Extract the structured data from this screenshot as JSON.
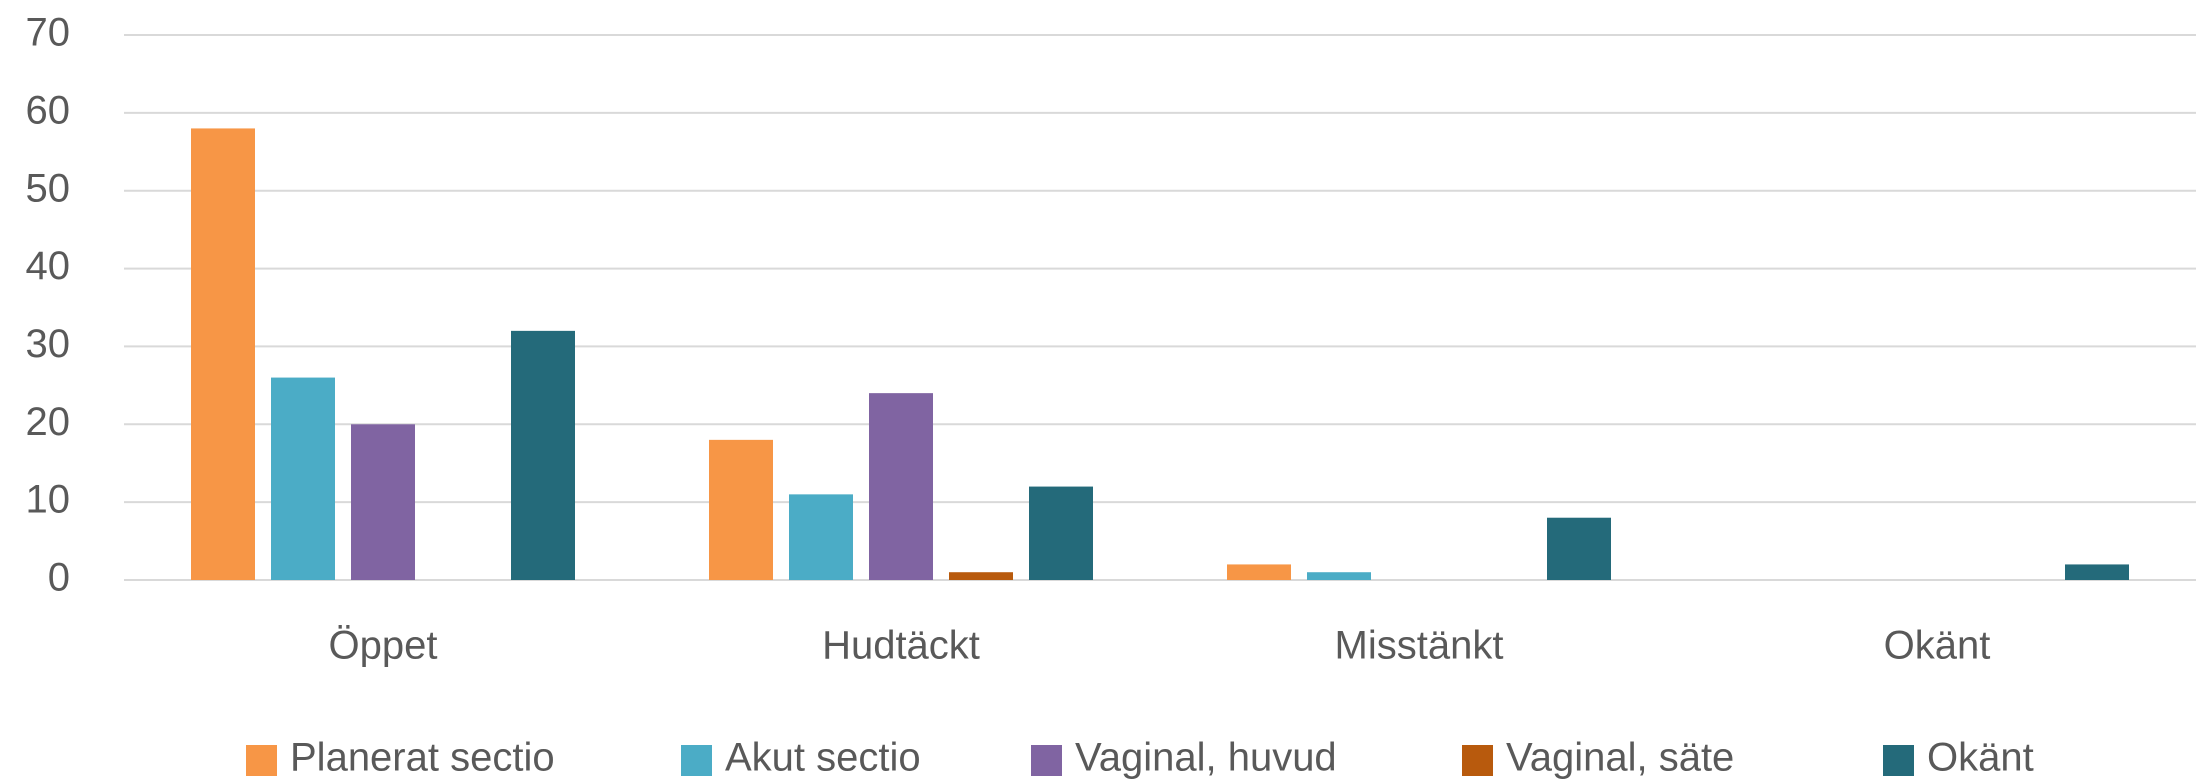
{
  "chart_data": {
    "type": "bar",
    "categories": [
      "Öppet",
      "Hudtäckt",
      "Misstänkt",
      "Okänt"
    ],
    "series": [
      {
        "name": "Planerat sectio",
        "color": "#f79646",
        "values": [
          58,
          18,
          2,
          0
        ]
      },
      {
        "name": "Akut sectio",
        "color": "#4bacc6",
        "values": [
          26,
          11,
          1,
          0
        ]
      },
      {
        "name": "Vaginal, huvud",
        "color": "#8064a2",
        "values": [
          20,
          24,
          0,
          0
        ]
      },
      {
        "name": "Vaginal, säte",
        "color": "#b85a0d",
        "values": [
          0,
          1,
          0,
          0
        ]
      },
      {
        "name": "Okänt",
        "color": "#246a7a",
        "values": [
          32,
          12,
          8,
          2
        ]
      }
    ],
    "ylim": [
      0,
      70
    ],
    "yticks": [
      0,
      10,
      20,
      30,
      40,
      50,
      60,
      70
    ],
    "grid": true,
    "legend": "bottom"
  }
}
